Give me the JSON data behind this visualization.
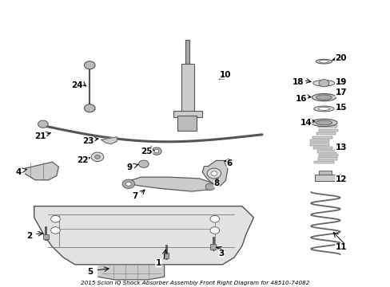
{
  "title": "2015 Scion iQ Shock Absorber Assembly Front Right Diagram for 48510-74082",
  "background_color": "#ffffff",
  "figsize": [
    4.89,
    3.6
  ],
  "dpi": 100,
  "label_fontsize": 7.5,
  "label_color": "#000000",
  "line_color": "#000000",
  "parts_info": {
    "1": [
      0.405,
      0.08,
      0.425,
      0.138
    ],
    "2": [
      0.072,
      0.175,
      0.115,
      0.185
    ],
    "3": [
      0.567,
      0.115,
      0.547,
      0.14
    ],
    "4": [
      0.045,
      0.4,
      0.068,
      0.41
    ],
    "5": [
      0.23,
      0.048,
      0.285,
      0.062
    ],
    "6": [
      0.588,
      0.43,
      0.567,
      0.44
    ],
    "7": [
      0.345,
      0.315,
      0.375,
      0.345
    ],
    "8": [
      0.555,
      0.36,
      0.54,
      0.375
    ],
    "9": [
      0.33,
      0.415,
      0.36,
      0.43
    ],
    "10": [
      0.578,
      0.74,
      0.555,
      0.72
    ],
    "11": [
      0.875,
      0.135,
      0.85,
      0.195
    ],
    "12": [
      0.875,
      0.375,
      0.855,
      0.385
    ],
    "13": [
      0.875,
      0.485,
      0.855,
      0.49
    ],
    "14": [
      0.785,
      0.572,
      0.815,
      0.575
    ],
    "15": [
      0.875,
      0.625,
      0.855,
      0.625
    ],
    "16": [
      0.773,
      0.658,
      0.805,
      0.662
    ],
    "17": [
      0.875,
      0.678,
      0.855,
      0.668
    ],
    "18": [
      0.765,
      0.715,
      0.805,
      0.715
    ],
    "19": [
      0.875,
      0.715,
      0.855,
      0.715
    ],
    "20": [
      0.875,
      0.8,
      0.845,
      0.79
    ],
    "21": [
      0.1,
      0.525,
      0.135,
      0.54
    ],
    "22": [
      0.21,
      0.44,
      0.235,
      0.455
    ],
    "23": [
      0.225,
      0.508,
      0.258,
      0.518
    ],
    "24": [
      0.195,
      0.705,
      0.225,
      0.695
    ],
    "25": [
      0.375,
      0.473,
      0.395,
      0.475
    ]
  }
}
